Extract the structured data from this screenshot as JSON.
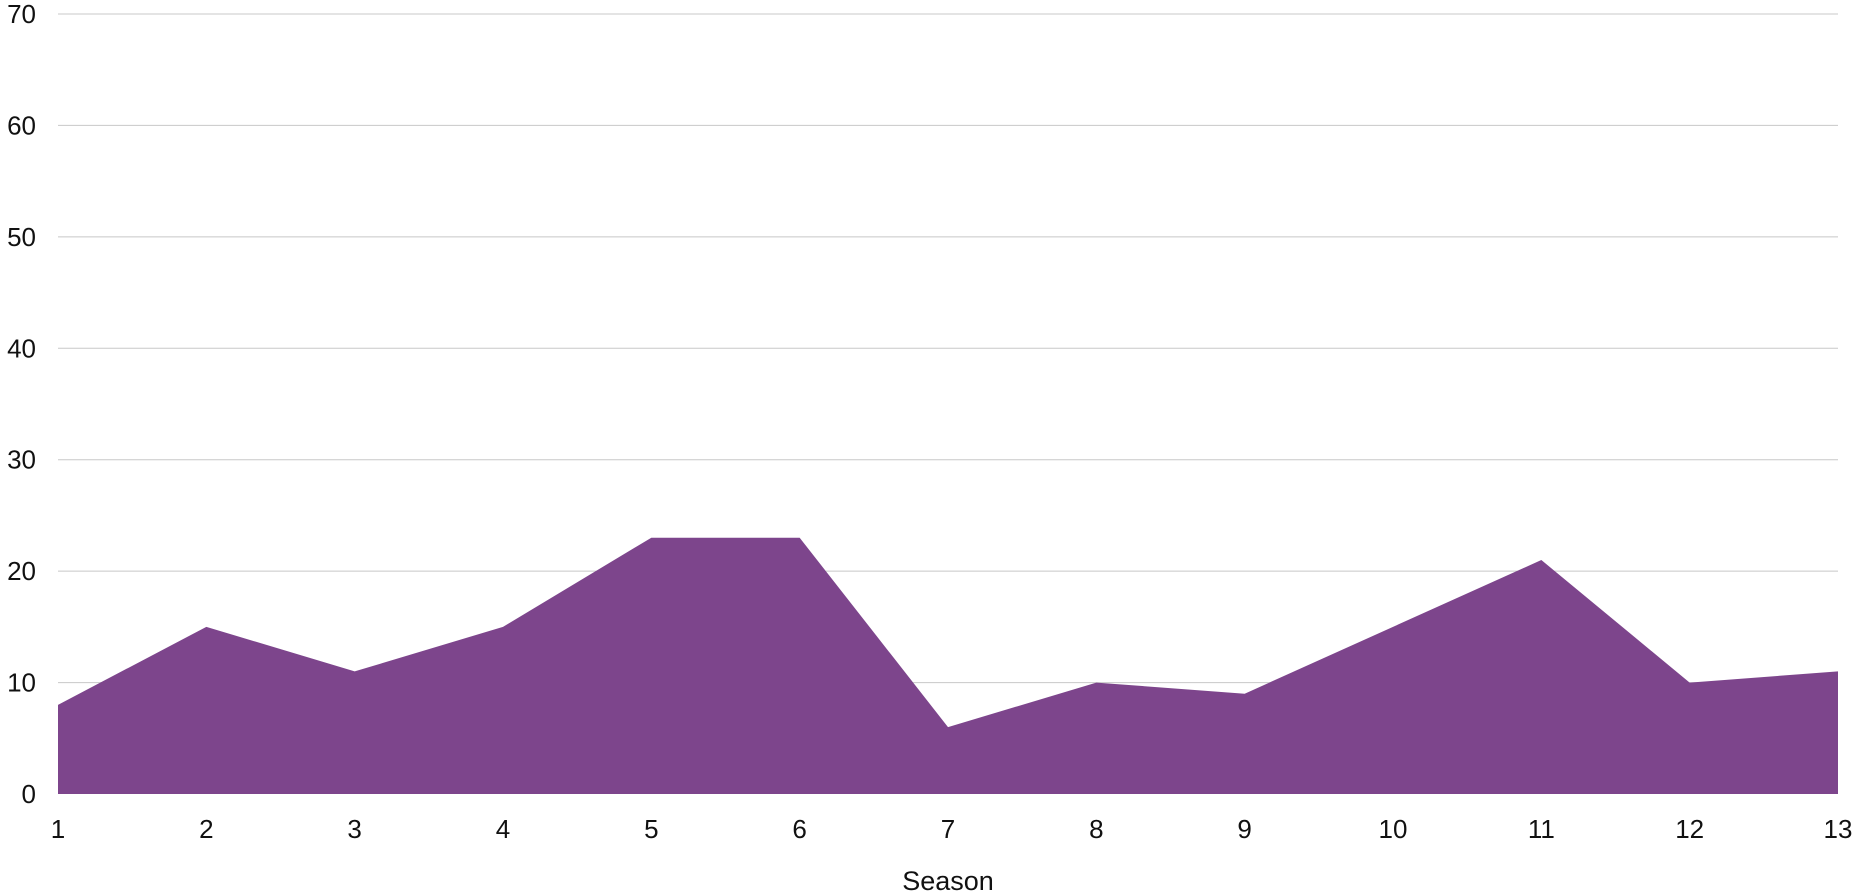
{
  "chart_data": {
    "type": "area",
    "title": "",
    "xlabel": "Season",
    "ylabel": "",
    "x": [
      1,
      2,
      3,
      4,
      5,
      6,
      7,
      8,
      9,
      10,
      11,
      12,
      13
    ],
    "series": [
      {
        "values": [
          8,
          15,
          11,
          15,
          23,
          23,
          6,
          10,
          9,
          15,
          21,
          10,
          11
        ],
        "color": "#7d458c"
      }
    ],
    "xlim": [
      1,
      13
    ],
    "ylim": [
      0,
      70
    ],
    "y_ticks": [
      0,
      10,
      20,
      30,
      40,
      50,
      60,
      70
    ],
    "grid": true,
    "legend": "none"
  }
}
